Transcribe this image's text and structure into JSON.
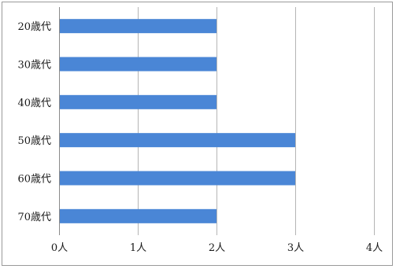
{
  "chart_data": {
    "type": "bar",
    "orientation": "horizontal",
    "title": "",
    "xlabel": "",
    "ylabel": "",
    "categories": [
      "20歳代",
      "30歳代",
      "40歳代",
      "50歳代",
      "60歳代",
      "70歳代"
    ],
    "values": [
      2,
      2,
      2,
      3,
      3,
      2
    ],
    "x_ticks": [
      "0人",
      "1人",
      "2人",
      "3人",
      "4人"
    ],
    "xlim": [
      0,
      4
    ],
    "grid": true,
    "legend": "none",
    "colors": {
      "bar": "#4a86d6",
      "grid": "#b5b5b5",
      "axis": "#8a8a8a"
    }
  }
}
